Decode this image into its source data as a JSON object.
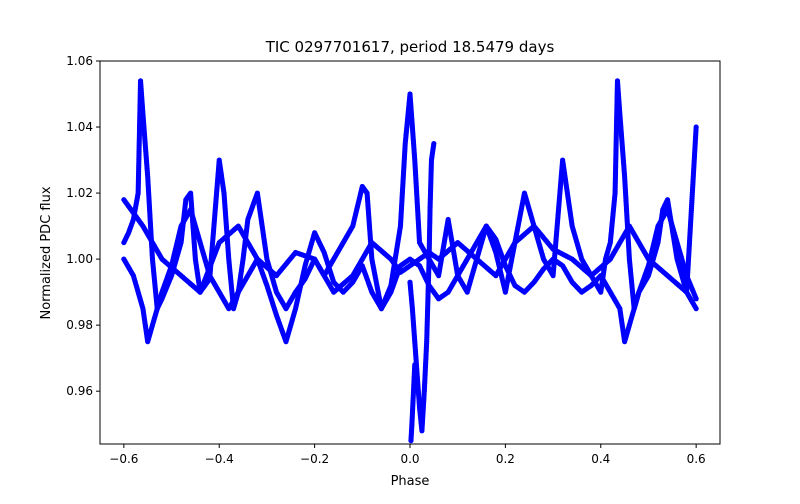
{
  "chart_data": {
    "type": "scatter",
    "title": "TIC 0297701617, period 18.5479 days",
    "xlabel": "Phase",
    "ylabel": "Normalized PDC flux",
    "xlim": [
      -0.65,
      0.65
    ],
    "ylim": [
      0.944,
      1.06
    ],
    "xticks": [
      -0.6,
      -0.4,
      -0.2,
      0.0,
      0.2,
      0.4,
      0.6
    ],
    "xtick_labels": [
      "−0.6",
      "−0.4",
      "−0.2",
      "0.0",
      "0.2",
      "0.4",
      "0.6"
    ],
    "yticks": [
      0.96,
      0.98,
      1.0,
      1.02,
      1.04,
      1.06
    ],
    "ytick_labels": [
      "0.96",
      "0.98",
      "1.00",
      "1.02",
      "1.04",
      "1.06"
    ],
    "grid": false,
    "marker_color": "#0000ff",
    "series": [
      {
        "x": [
          -0.6,
          -0.59,
          -0.58,
          -0.57,
          -0.565,
          -0.56,
          -0.55,
          -0.54,
          -0.53,
          -0.52,
          -0.5,
          -0.48,
          -0.47,
          -0.46,
          -0.45,
          -0.44,
          -0.42,
          -0.4,
          -0.39,
          -0.38,
          -0.37,
          -0.36,
          -0.35,
          -0.34,
          -0.32,
          -0.3,
          -0.28,
          -0.26,
          -0.24,
          -0.22,
          -0.2,
          -0.18,
          -0.16,
          -0.14,
          -0.12,
          -0.1,
          -0.09,
          -0.08,
          -0.06,
          -0.04,
          -0.02,
          -0.01,
          0.0,
          0.01,
          0.02,
          0.04,
          0.06,
          0.08,
          0.1,
          0.12,
          0.14,
          0.16,
          0.18,
          0.2,
          0.22,
          0.24,
          0.26,
          0.28,
          0.3,
          0.32,
          0.34,
          0.36,
          0.38,
          0.4,
          0.41,
          0.42,
          0.43,
          0.435,
          0.44,
          0.45,
          0.46,
          0.47,
          0.48,
          0.5,
          0.52,
          0.53,
          0.54,
          0.56,
          0.58,
          0.6
        ],
        "y": [
          1.005,
          1.008,
          1.012,
          1.02,
          1.054,
          1.044,
          1.025,
          1.0,
          0.985,
          0.988,
          0.995,
          1.005,
          1.018,
          1.02,
          1.0,
          0.99,
          0.994,
          1.03,
          1.02,
          1.0,
          0.985,
          0.99,
          1.0,
          1.012,
          1.02,
          1.0,
          0.99,
          0.985,
          0.99,
          0.994,
          1.0,
          0.995,
          1.0,
          1.005,
          1.01,
          1.022,
          1.02,
          1.0,
          0.985,
          0.992,
          1.01,
          1.035,
          1.05,
          1.03,
          1.005,
          1.0,
          0.995,
          1.012,
          0.995,
          0.99,
          1.0,
          1.01,
          1.002,
          0.99,
          1.005,
          1.02,
          1.01,
          1.0,
          0.995,
          1.03,
          1.01,
          1.0,
          0.995,
          0.99,
          1.0,
          1.005,
          1.02,
          1.054,
          1.044,
          1.025,
          1.0,
          0.985,
          0.99,
          0.995,
          1.005,
          1.015,
          1.018,
          1.0,
          0.99,
          1.04
        ]
      },
      {
        "x": [
          -0.6,
          -0.58,
          -0.56,
          -0.55,
          -0.54,
          -0.52,
          -0.5,
          -0.48,
          -0.46,
          -0.44,
          -0.42,
          -0.4,
          -0.38,
          -0.36,
          -0.34,
          -0.32,
          -0.3,
          -0.28,
          -0.26,
          -0.24,
          -0.22,
          -0.2,
          -0.18,
          -0.16,
          -0.14,
          -0.12,
          -0.1,
          -0.08,
          -0.06,
          -0.04,
          -0.02,
          0.0,
          0.02,
          0.04,
          0.06,
          0.08,
          0.1,
          0.12,
          0.14,
          0.16,
          0.18,
          0.2,
          0.22,
          0.24,
          0.26,
          0.28,
          0.3,
          0.32,
          0.34,
          0.36,
          0.38,
          0.4,
          0.42,
          0.44,
          0.45,
          0.46,
          0.48,
          0.5,
          0.52,
          0.54,
          0.56,
          0.58,
          0.6
        ],
        "y": [
          1.0,
          0.995,
          0.985,
          0.975,
          0.98,
          0.99,
          0.998,
          1.01,
          1.015,
          1.005,
          0.995,
          0.99,
          0.985,
          0.99,
          0.995,
          1.0,
          0.992,
          0.983,
          0.975,
          0.985,
          0.998,
          1.008,
          1.002,
          0.993,
          0.99,
          0.993,
          0.998,
          0.99,
          0.985,
          0.99,
          0.998,
          1.0,
          0.998,
          0.992,
          0.988,
          0.99,
          0.995,
          1.0,
          1.005,
          1.01,
          1.006,
          0.998,
          0.992,
          0.99,
          0.993,
          0.997,
          1.0,
          0.998,
          0.993,
          0.99,
          0.992,
          0.995,
          0.99,
          0.985,
          0.975,
          0.98,
          0.99,
          0.998,
          1.01,
          1.015,
          1.005,
          0.995,
          0.988
        ]
      },
      {
        "x": [
          -0.6,
          -0.56,
          -0.52,
          -0.48,
          -0.44,
          -0.4,
          -0.36,
          -0.32,
          -0.28,
          -0.24,
          -0.2,
          -0.16,
          -0.12,
          -0.08,
          -0.04,
          -0.02,
          0.0,
          0.02,
          0.04,
          0.06,
          0.1,
          0.14,
          0.18,
          0.22,
          0.26,
          0.3,
          0.34,
          0.38,
          0.42,
          0.46,
          0.5,
          0.54,
          0.58,
          0.6
        ],
        "y": [
          1.018,
          1.01,
          1.0,
          0.995,
          0.99,
          1.005,
          1.01,
          1.0,
          0.995,
          1.002,
          1.0,
          0.99,
          0.995,
          1.005,
          1.0,
          0.996,
          0.998,
          1.0,
          1.002,
          1.0,
          1.005,
          1.0,
          0.995,
          1.005,
          1.01,
          1.003,
          1.0,
          0.995,
          1.0,
          1.01,
          1.0,
          0.995,
          0.99,
          0.985
        ]
      },
      {
        "x": [
          0.0,
          0.005,
          0.01,
          0.015,
          0.02,
          0.025,
          0.03,
          0.035,
          0.038,
          0.04,
          0.042,
          0.045,
          0.05
        ],
        "y": [
          0.993,
          0.985,
          0.975,
          0.965,
          0.955,
          0.948,
          0.96,
          0.975,
          0.99,
          1.0,
          1.015,
          1.03,
          1.035
        ]
      },
      {
        "x": [
          0.002,
          0.004,
          0.006,
          0.008,
          0.01
        ],
        "y": [
          0.945,
          0.95,
          0.956,
          0.962,
          0.968
        ]
      }
    ]
  }
}
